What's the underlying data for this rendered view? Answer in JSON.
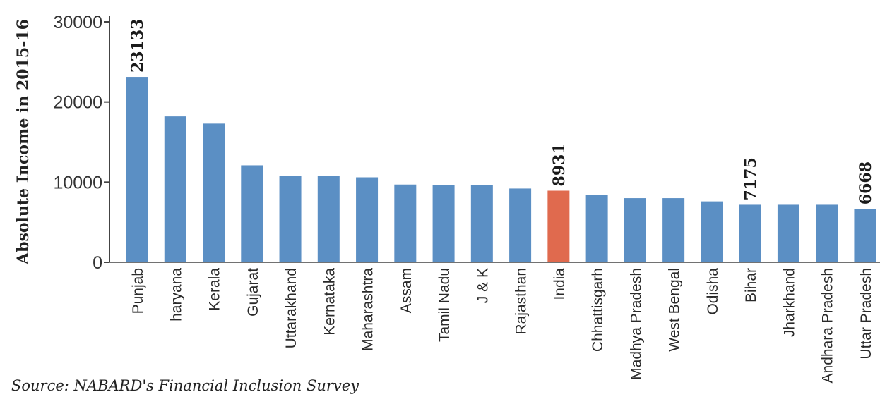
{
  "chart_data": {
    "type": "bar",
    "ylabel": "Absolute Income in 2015-16",
    "ylim": [
      0,
      30000
    ],
    "yticks": [
      "0",
      "10000",
      "20000",
      "30000"
    ],
    "categories": [
      "Punjab",
      "haryana",
      "Kerala",
      "Gujarat",
      "Uttarakhand",
      "Kernataka",
      "Maharashtra",
      "Assam",
      "Tamil Nadu",
      "J & K",
      "Rajasthan",
      "India",
      "Chhattisgarh",
      "Madhya Pradesh",
      "West Bengal",
      "Odisha",
      "Bihar",
      "Jharkhand",
      "Andhara Pradesh",
      "Uttar Pradesh"
    ],
    "values": [
      23133,
      18200,
      17300,
      12100,
      10800,
      10800,
      10600,
      9700,
      9600,
      9600,
      9200,
      8931,
      8400,
      8000,
      8000,
      7600,
      7175,
      7175,
      7175,
      6668
    ],
    "highlight_category": "India",
    "data_labels": [
      {
        "category": "Punjab",
        "text": "23133"
      },
      {
        "category": "India",
        "text": "8931"
      },
      {
        "category": "Bihar",
        "text": "7175"
      },
      {
        "category": "Uttar Pradesh",
        "text": "6668"
      }
    ],
    "colors": {
      "bar": "#5b8fc4",
      "highlight": "#e06a4e",
      "axis": "#444444"
    },
    "grid": false,
    "legend": "none"
  },
  "source": "Source: NABARD's Financial Inclusion Survey"
}
